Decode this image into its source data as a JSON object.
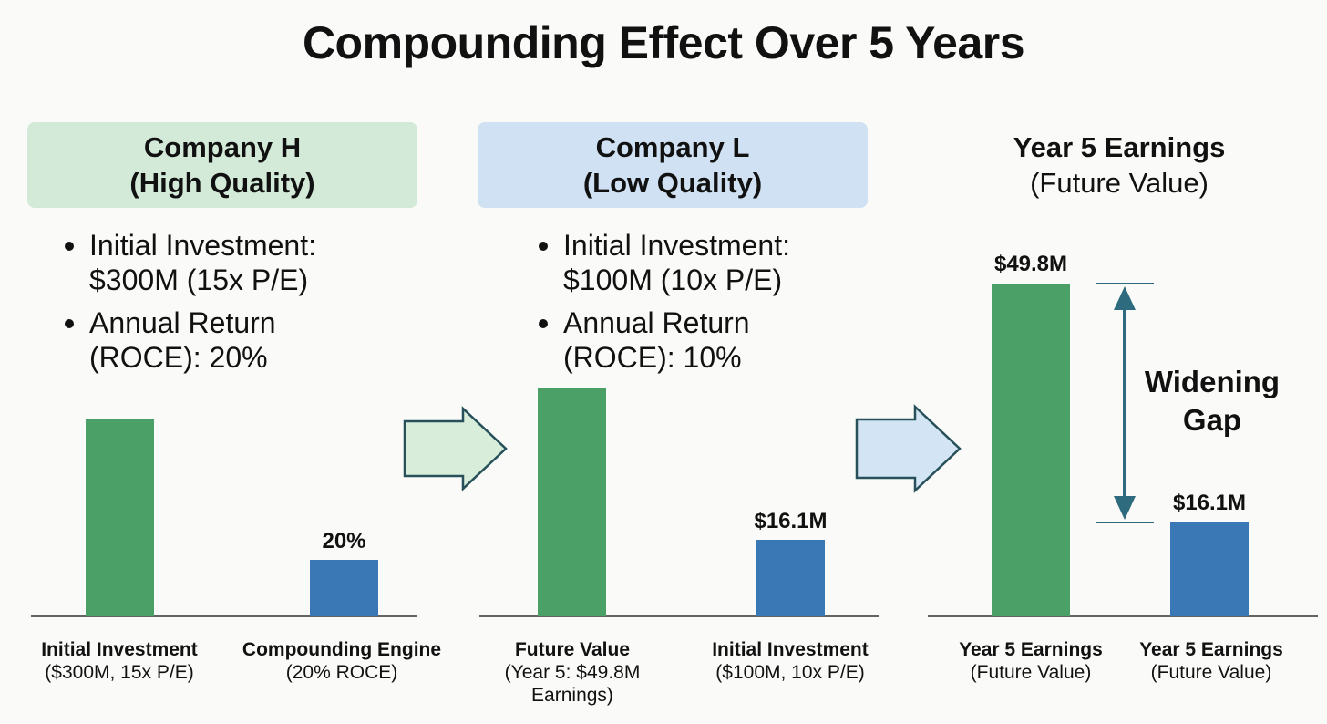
{
  "title": "Compounding Effect Over 5 Years",
  "panels": {
    "company_h": {
      "heading_line1": "Company H",
      "heading_line2": "(High Quality)",
      "bullets": [
        "Initial Investment: $300M (15x P/E)",
        "Annual Return (ROCE): 20%"
      ],
      "accent_color": "#d3ead8"
    },
    "company_l": {
      "heading_line1": "Company L",
      "heading_line2": "(Low Quality)",
      "bullets": [
        "Initial Investment: $100M (10x P/E)",
        "Annual Return (ROCE): 10%"
      ],
      "accent_color": "#cfe1f2"
    },
    "year5": {
      "heading_line1": "Year 5 Earnings",
      "heading_line2": "(Future Value)"
    }
  },
  "gap_annotation": {
    "line1": "Widening",
    "line2": "Gap"
  },
  "colors": {
    "green_bar": "#4aa066",
    "blue_bar": "#3a78b5",
    "arrow_stroke": "#27505a",
    "gap_arrow": "#2f6b7e"
  },
  "chart_data": [
    {
      "type": "bar",
      "bars": [
        {
          "label": "Initial Investment",
          "sublabel": "($300M, 15x P/E)",
          "value_label": "",
          "color": "green"
        },
        {
          "label": "Compounding Engine",
          "sublabel": "(20% ROCE)",
          "value_label": "20%",
          "color": "blue"
        }
      ]
    },
    {
      "type": "bar",
      "bars": [
        {
          "label": "Future Value",
          "sublabel": "(Year 5: $49.8M Earnings)",
          "value_label": "",
          "color": "green"
        },
        {
          "label": "Initial Investment",
          "sublabel": "($100M, 10x P/E)",
          "value_label": "$16.1M",
          "color": "blue"
        }
      ]
    },
    {
      "type": "bar",
      "bars": [
        {
          "label": "Year 5 Earnings",
          "sublabel": "(Future Value)",
          "value_label": "$49.8M",
          "value": 49.8,
          "color": "green"
        },
        {
          "label": "Year 5 Earnings",
          "sublabel": "(Future Value)",
          "value_label": "$16.1M",
          "value": 16.1,
          "color": "blue"
        }
      ]
    }
  ]
}
